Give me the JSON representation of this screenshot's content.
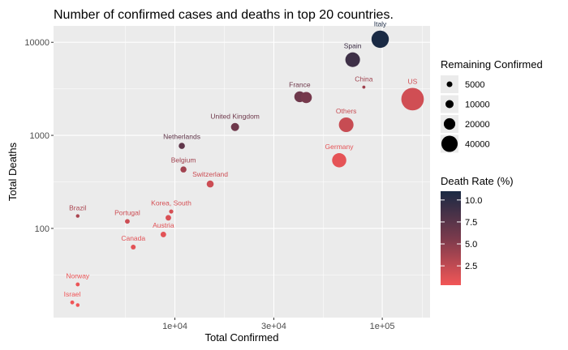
{
  "chart_data": {
    "type": "scatter",
    "title": "Number of confirmed cases and deaths in top 20 countries.",
    "xlabel": "Total Confirmed",
    "ylabel": "Total Deaths",
    "x_scale": "log10",
    "y_scale": "log10",
    "xlim": [
      2600,
      170000
    ],
    "ylim": [
      11,
      15000
    ],
    "x_ticks": [
      {
        "value": 10000,
        "label": "1e+04"
      },
      {
        "value": 30000,
        "label": "3e+04"
      },
      {
        "value": 100000,
        "label": "1e+05"
      }
    ],
    "y_ticks": [
      {
        "value": 100,
        "label": "100"
      },
      {
        "value": 1000,
        "label": "1000"
      },
      {
        "value": 10000,
        "label": "10000"
      }
    ],
    "grid": true,
    "points": [
      {
        "label": "Italy",
        "x": 97700,
        "y": 10800,
        "remaining": 77000,
        "death_rate": 11.0
      },
      {
        "label": "Spain",
        "x": 72000,
        "y": 6500,
        "remaining": 55000,
        "death_rate": 9.0
      },
      {
        "label": "China",
        "x": 81500,
        "y": 3300,
        "remaining": 2500,
        "death_rate": 4.0
      },
      {
        "label": "US",
        "x": 140000,
        "y": 2450,
        "remaining": 130000,
        "death_rate": 1.8
      },
      {
        "label": "France",
        "x": 40000,
        "y": 2600,
        "remaining": 30000,
        "death_rate": 6.3
      },
      {
        "label": "",
        "x": 43000,
        "y": 2550,
        "remaining": 32000,
        "death_rate": 5.9
      },
      {
        "label": "Others",
        "x": 67000,
        "y": 1300,
        "remaining": 55000,
        "death_rate": 2.2
      },
      {
        "label": "United Kingdom",
        "x": 19500,
        "y": 1230,
        "remaining": 17000,
        "death_rate": 6.3
      },
      {
        "label": "Netherlands",
        "x": 10800,
        "y": 770,
        "remaining": 9700,
        "death_rate": 7.1
      },
      {
        "label": "Germany",
        "x": 62000,
        "y": 540,
        "remaining": 52000,
        "death_rate": 0.9
      },
      {
        "label": "Belgium",
        "x": 11000,
        "y": 430,
        "remaining": 9500,
        "death_rate": 3.9
      },
      {
        "label": "Switzerland",
        "x": 14800,
        "y": 300,
        "remaining": 12500,
        "death_rate": 2.0
      },
      {
        "label": "Korea, South",
        "x": 9600,
        "y": 152,
        "remaining": 4500,
        "death_rate": 1.6
      },
      {
        "label": "",
        "x": 9300,
        "y": 130,
        "remaining": 8000,
        "death_rate": 1.4
      },
      {
        "label": "Brazil",
        "x": 3400,
        "y": 136,
        "remaining": 3300,
        "death_rate": 3.5
      },
      {
        "label": "Portugal",
        "x": 5900,
        "y": 119,
        "remaining": 5700,
        "death_rate": 2.0
      },
      {
        "label": "Austria",
        "x": 8800,
        "y": 86,
        "remaining": 8000,
        "death_rate": 1.0
      },
      {
        "label": "Canada",
        "x": 6300,
        "y": 63,
        "remaining": 6000,
        "death_rate": 1.0
      },
      {
        "label": "Norway",
        "x": 3400,
        "y": 25,
        "remaining": 4000,
        "death_rate": 0.6
      },
      {
        "label": "Israel",
        "x": 3200,
        "y": 16,
        "remaining": 4000,
        "death_rate": 0.4
      },
      {
        "label": "",
        "x": 3400,
        "y": 15,
        "remaining": 3500,
        "death_rate": 0.4
      }
    ],
    "size_legend": {
      "title": "Remaining Confirmed",
      "values": [
        5000,
        10000,
        20000,
        40000
      ],
      "labels": [
        "5000",
        "10000",
        "20000",
        "40000"
      ]
    },
    "color_legend": {
      "title": "Death Rate (%)",
      "range": [
        0.3,
        11.0
      ],
      "ticks": [
        {
          "value": 10.0,
          "label": "10.0"
        },
        {
          "value": 7.5,
          "label": "7.5"
        },
        {
          "value": 5.0,
          "label": "5.0"
        },
        {
          "value": 2.5,
          "label": "2.5"
        }
      ]
    },
    "colors": {
      "low": "#f25657",
      "mid": "#7a3a4c",
      "high": "#1a2a44",
      "panel": "#ebebeb",
      "grid": "#ffffff"
    },
    "legend_position": "right"
  }
}
